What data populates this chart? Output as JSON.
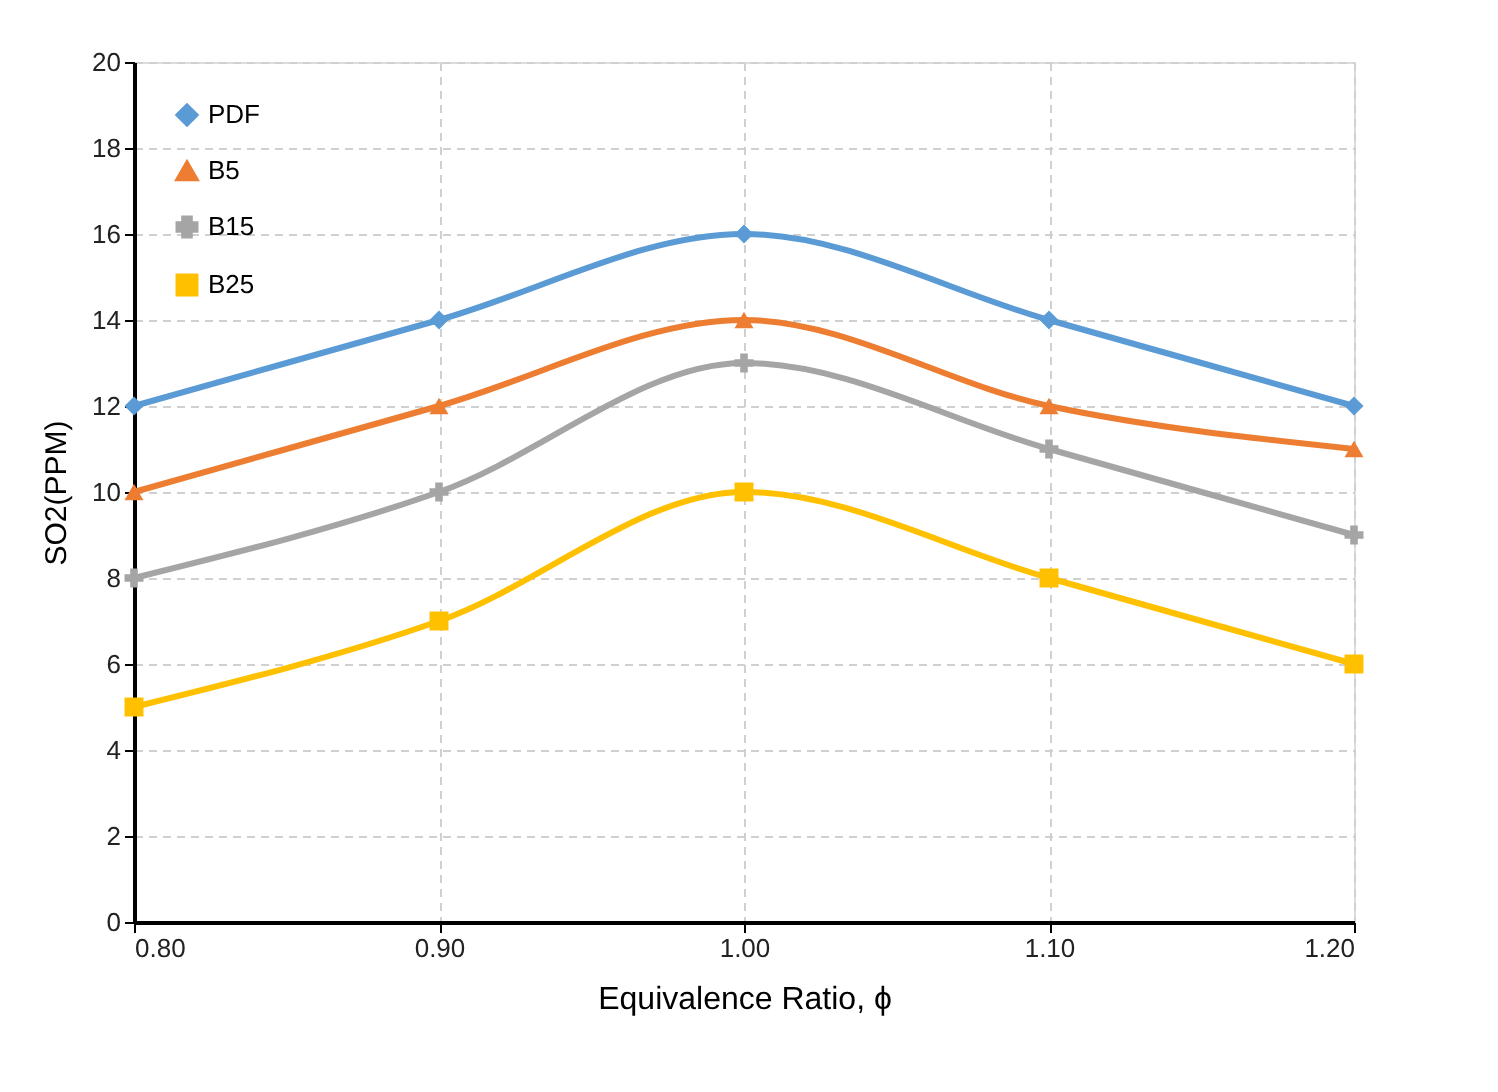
{
  "chart_data": {
    "type": "line",
    "xlabel": "Equivalence Ratio, ϕ",
    "ylabel": "SO2(PPM)",
    "x": [
      0.8,
      0.9,
      1.0,
      1.1,
      1.2
    ],
    "series": [
      {
        "name": "PDF",
        "color": "#5b9bd5",
        "marker": "diamond",
        "values": [
          12,
          14,
          16,
          14,
          12
        ]
      },
      {
        "name": "B5",
        "color": "#ed7d31",
        "marker": "triangle",
        "values": [
          10,
          12,
          14,
          12,
          11
        ]
      },
      {
        "name": "B15",
        "color": "#a5a5a5",
        "marker": "cross",
        "values": [
          8,
          10,
          13,
          11,
          9
        ]
      },
      {
        "name": "B25",
        "color": "#ffc000",
        "marker": "square",
        "values": [
          5,
          7,
          10,
          8,
          6
        ]
      }
    ],
    "xlim": [
      0.8,
      1.2
    ],
    "xticks": [
      {
        "value": 0.8,
        "label": "0.80"
      },
      {
        "value": 0.9,
        "label": "0.90"
      },
      {
        "value": 1.0,
        "label": "1.00"
      },
      {
        "value": 1.1,
        "label": "1.10"
      },
      {
        "value": 1.2,
        "label": "1.20"
      }
    ],
    "ylim": [
      0,
      20
    ],
    "yticks": [
      0,
      2,
      4,
      6,
      8,
      10,
      12,
      14,
      16,
      18,
      20
    ],
    "grid": true,
    "legend": "top left",
    "line_style": "solid"
  }
}
